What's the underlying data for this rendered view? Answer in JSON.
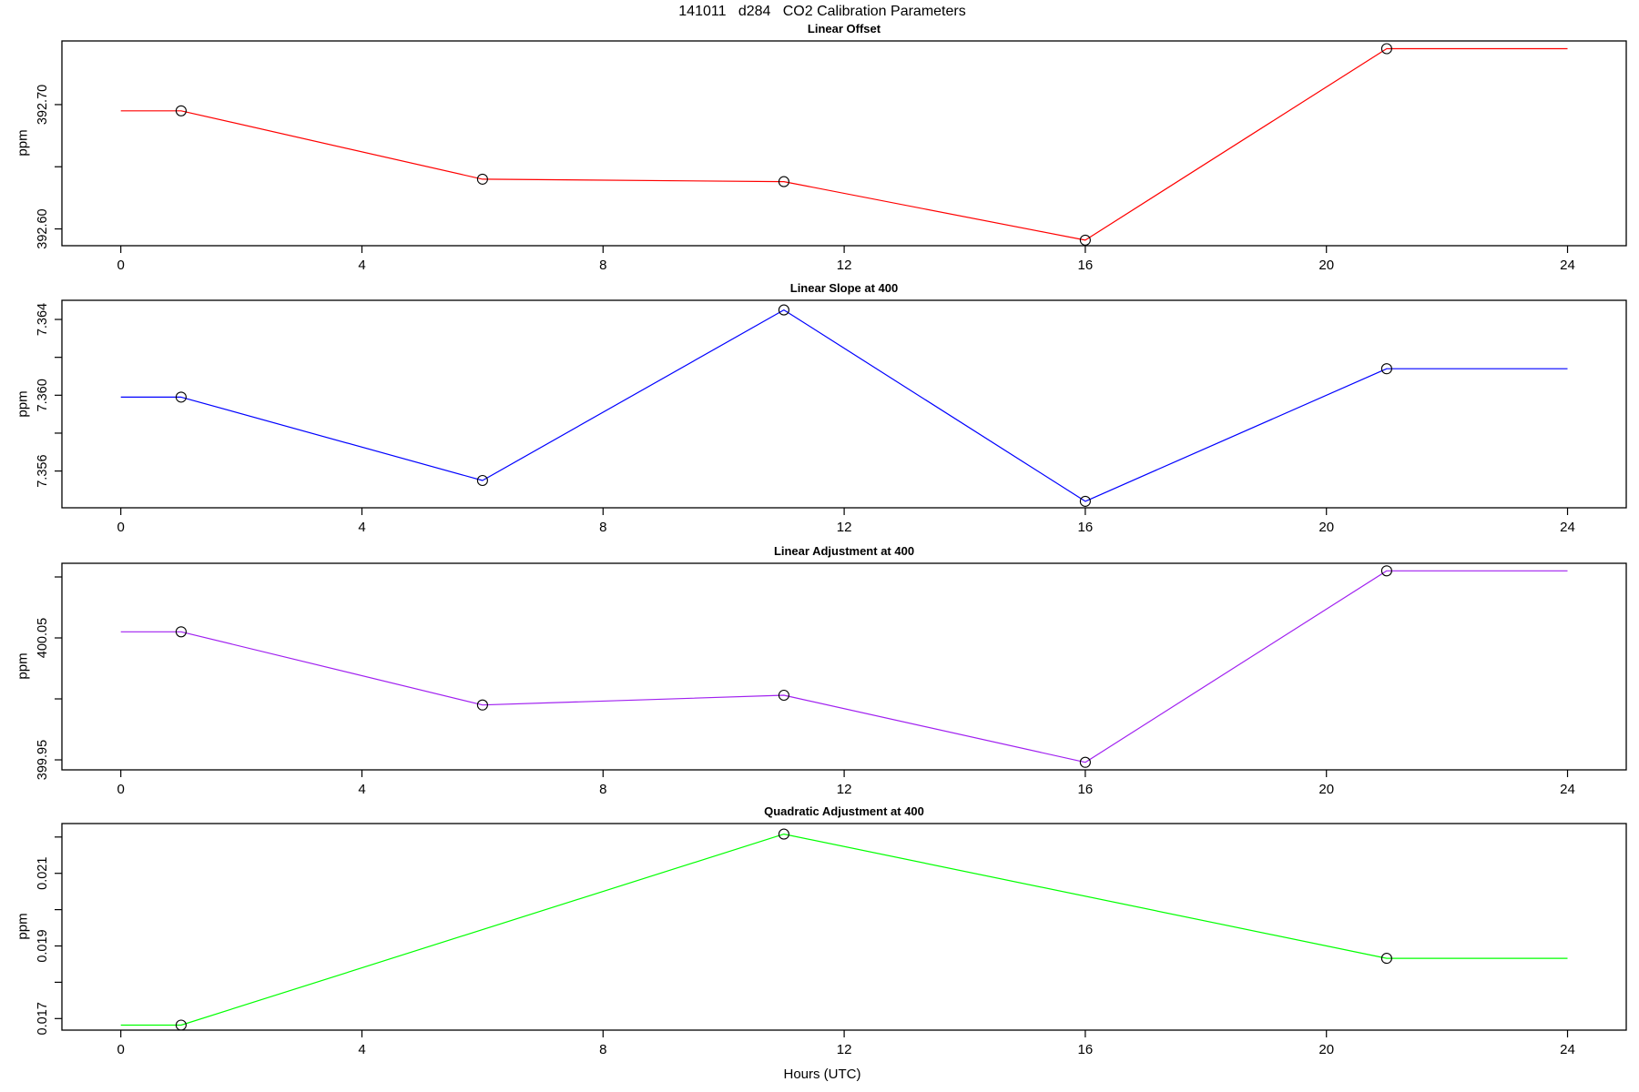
{
  "figure": {
    "title": "141011   d284   CO2 Calibration Parameters",
    "xlabel": "Hours (UTC)"
  },
  "x_axis": {
    "xlim": [
      -0.977,
      24.974
    ],
    "ticks": [
      0,
      4,
      8,
      12,
      16,
      20,
      24
    ],
    "tick_labels": [
      "0",
      "4",
      "8",
      "12",
      "16",
      "20",
      "24"
    ]
  },
  "chart_data": [
    {
      "type": "line",
      "title": "Linear Offset",
      "ylabel": "ppm",
      "color": "#FF0000",
      "marker": "open-circle",
      "x": [
        0,
        1,
        6,
        11,
        16,
        21,
        24
      ],
      "y": [
        392.695,
        392.695,
        392.64,
        392.638,
        392.591,
        392.745,
        392.745
      ],
      "marker_indices": [
        1,
        2,
        3,
        4,
        5
      ],
      "ylim": [
        392.5865,
        392.7512
      ],
      "yticks": [
        {
          "v": 392.6,
          "label": "392.60"
        },
        {
          "v": 392.65,
          "label": ""
        },
        {
          "v": 392.7,
          "label": "392.70"
        }
      ]
    },
    {
      "type": "line",
      "title": "Linear Slope at 400",
      "ylabel": "ppm",
      "color": "#0000FF",
      "marker": "open-circle",
      "x": [
        0,
        1,
        6,
        11,
        16,
        21,
        24
      ],
      "y": [
        7.3599,
        7.3599,
        7.3555,
        7.3645,
        7.3544,
        7.3614,
        7.3614
      ],
      "marker_indices": [
        1,
        2,
        3,
        4,
        5
      ],
      "ylim": [
        7.35406,
        7.36501
      ],
      "yticks": [
        {
          "v": 7.356,
          "label": "7.356"
        },
        {
          "v": 7.358,
          "label": ""
        },
        {
          "v": 7.36,
          "label": "7.360"
        },
        {
          "v": 7.362,
          "label": ""
        },
        {
          "v": 7.364,
          "label": "7.364"
        }
      ]
    },
    {
      "type": "line",
      "title": "Linear Adjustment at 400",
      "ylabel": "ppm",
      "color": "#A020F0",
      "marker": "open-circle",
      "x": [
        0,
        1,
        6,
        11,
        16,
        21,
        24
      ],
      "y": [
        400.055,
        400.055,
        399.995,
        400.003,
        399.948,
        400.105,
        400.105
      ],
      "marker_indices": [
        1,
        2,
        3,
        4,
        5
      ],
      "ylim": [
        399.9418,
        400.1112
      ],
      "yticks": [
        {
          "v": 399.95,
          "label": "399.95"
        },
        {
          "v": 400.0,
          "label": ""
        },
        {
          "v": 400.05,
          "label": "400.05"
        },
        {
          "v": 400.1,
          "label": ""
        }
      ]
    },
    {
      "type": "line",
      "title": "Quadratic Adjustment at 400",
      "ylabel": "ppm",
      "color": "#00FF00",
      "marker": "open-circle",
      "x": [
        0,
        1,
        11,
        21,
        24
      ],
      "y": [
        0.01682,
        0.01682,
        0.02208,
        0.01866,
        0.01866
      ],
      "marker_indices": [
        1,
        2,
        3
      ],
      "ylim": [
        0.016682,
        0.022371
      ],
      "yticks": [
        {
          "v": 0.017,
          "label": "0.017"
        },
        {
          "v": 0.018,
          "label": ""
        },
        {
          "v": 0.019,
          "label": "0.019"
        },
        {
          "v": 0.02,
          "label": ""
        },
        {
          "v": 0.021,
          "label": "0.021"
        },
        {
          "v": 0.022,
          "label": ""
        }
      ]
    }
  ]
}
